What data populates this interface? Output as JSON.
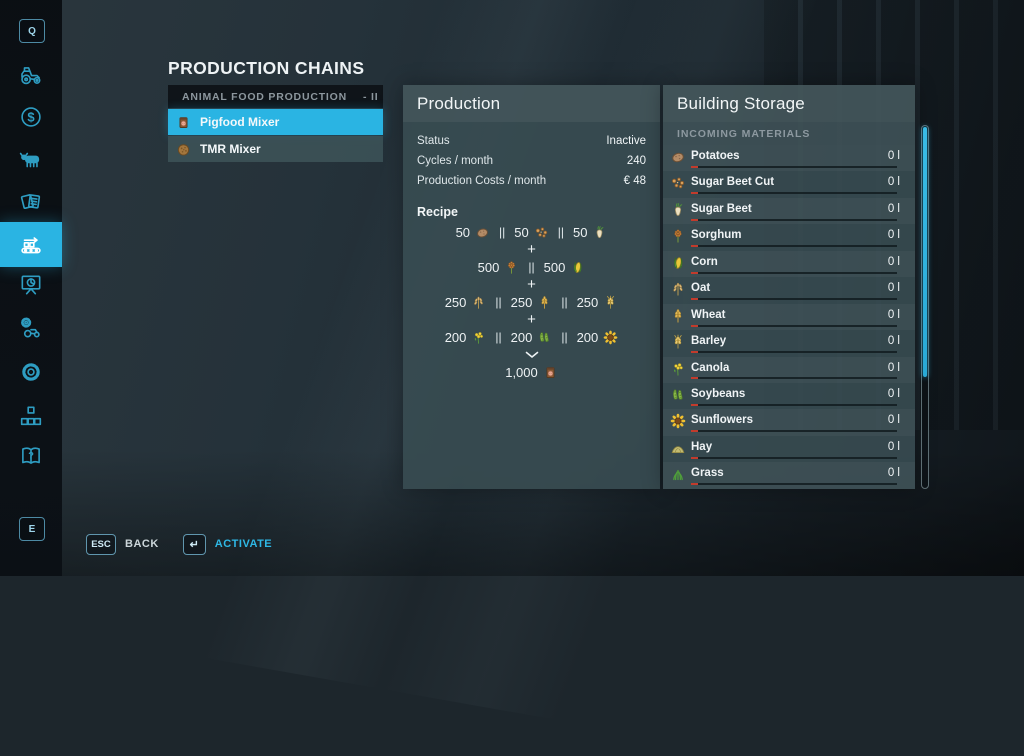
{
  "page_title": "PRODUCTION CHAINS",
  "colors": {
    "accent": "#2ab4e3",
    "panel": "#394d53",
    "sidebar_icon": "#2e9dc2",
    "status_red": "#c23b2c",
    "text": "#eef2f4",
    "muted": "#8d99a0"
  },
  "sidebar": {
    "top_key": "Q",
    "bottom_key": "E",
    "items": [
      {
        "id": "vehicles",
        "icon": "tractor",
        "active": false
      },
      {
        "id": "finances",
        "icon": "dollar",
        "active": false
      },
      {
        "id": "animals",
        "icon": "cow",
        "active": false
      },
      {
        "id": "contracts",
        "icon": "contracts",
        "active": false
      },
      {
        "id": "production-chains",
        "icon": "conveyor",
        "active": true
      },
      {
        "id": "statistics",
        "icon": "stats",
        "active": false
      },
      {
        "id": "vehicle-maintenance",
        "icon": "service",
        "active": false
      },
      {
        "id": "settings",
        "icon": "gear",
        "active": false
      },
      {
        "id": "mods",
        "icon": "mods",
        "active": false
      },
      {
        "id": "help",
        "icon": "help",
        "active": false
      }
    ]
  },
  "chain_list": {
    "header": "ANIMAL FOOD PRODUCTION",
    "header_suffix": "- II",
    "items": [
      {
        "label": "Pigfood Mixer",
        "icon": "pigfood",
        "selected": true
      },
      {
        "label": "TMR Mixer",
        "icon": "tmr",
        "selected": false
      }
    ]
  },
  "production_panel": {
    "title": "Production",
    "stats": [
      {
        "label": "Status",
        "value": "Inactive"
      },
      {
        "label": "Cycles / month",
        "value": "240"
      },
      {
        "label": "Production Costs / month",
        "value": "€ 48"
      }
    ],
    "recipe": {
      "title": "Recipe",
      "separator": "||",
      "plus": "+",
      "lines": [
        {
          "type": "ingredients",
          "items": [
            {
              "amount": "50",
              "icon": "potato"
            },
            {
              "amount": "50",
              "icon": "sugar-beet-cut"
            },
            {
              "amount": "50",
              "icon": "sugar-beet"
            }
          ]
        },
        {
          "type": "plus"
        },
        {
          "type": "ingredients",
          "items": [
            {
              "amount": "500",
              "icon": "sorghum"
            },
            {
              "amount": "500",
              "icon": "corn"
            }
          ]
        },
        {
          "type": "plus"
        },
        {
          "type": "ingredients",
          "items": [
            {
              "amount": "250",
              "icon": "oat"
            },
            {
              "amount": "250",
              "icon": "wheat"
            },
            {
              "amount": "250",
              "icon": "barley"
            }
          ]
        },
        {
          "type": "plus"
        },
        {
          "type": "ingredients",
          "items": [
            {
              "amount": "200",
              "icon": "canola"
            },
            {
              "amount": "200",
              "icon": "soybeans"
            },
            {
              "amount": "200",
              "icon": "sunflower"
            }
          ]
        },
        {
          "type": "arrow"
        },
        {
          "type": "ingredients",
          "items": [
            {
              "amount": "1,000",
              "icon": "pigfood"
            }
          ]
        }
      ]
    }
  },
  "storage_panel": {
    "title": "Building Storage",
    "section": "INCOMING MATERIALS",
    "items": [
      {
        "name": "Potatoes",
        "icon": "potato",
        "value": "0 l"
      },
      {
        "name": "Sugar Beet Cut",
        "icon": "sugar-beet-cut",
        "value": "0 l"
      },
      {
        "name": "Sugar Beet",
        "icon": "sugar-beet",
        "value": "0 l"
      },
      {
        "name": "Sorghum",
        "icon": "sorghum",
        "value": "0 l"
      },
      {
        "name": "Corn",
        "icon": "corn",
        "value": "0 l"
      },
      {
        "name": "Oat",
        "icon": "oat",
        "value": "0 l"
      },
      {
        "name": "Wheat",
        "icon": "wheat",
        "value": "0 l"
      },
      {
        "name": "Barley",
        "icon": "barley",
        "value": "0 l"
      },
      {
        "name": "Canola",
        "icon": "canola",
        "value": "0 l"
      },
      {
        "name": "Soybeans",
        "icon": "soybeans",
        "value": "0 l"
      },
      {
        "name": "Sunflowers",
        "icon": "sunflower",
        "value": "0 l"
      },
      {
        "name": "Hay",
        "icon": "hay",
        "value": "0 l"
      },
      {
        "name": "Grass",
        "icon": "grass",
        "value": "0 l"
      }
    ]
  },
  "footer": {
    "back_key": "ESC",
    "back_label": "BACK",
    "activate_key": "↵",
    "activate_label": "ACTIVATE"
  }
}
